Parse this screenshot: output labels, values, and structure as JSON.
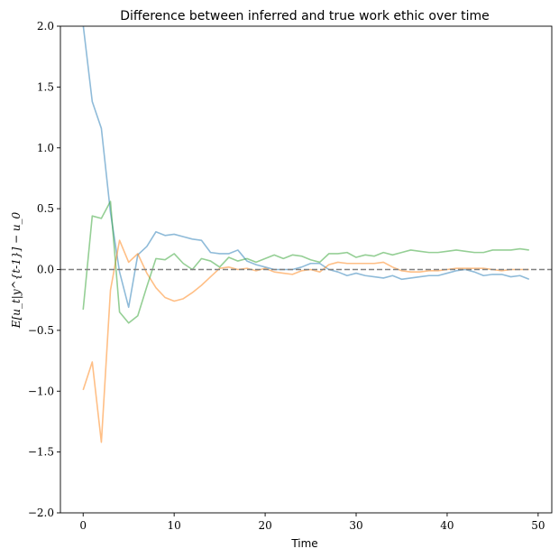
{
  "chart_data": {
    "type": "line",
    "title": "Difference between inferred and true work ethic over time",
    "xlabel": "Time",
    "ylabel": "E[u_t|y^{t-1}] − u_0",
    "xlim": [
      -2.5,
      51.5
    ],
    "ylim": [
      -2.0,
      2.0
    ],
    "xticks": [
      0,
      10,
      20,
      30,
      40,
      50
    ],
    "yticks": [
      -2.0,
      -1.5,
      -1.0,
      -0.5,
      0.0,
      0.5,
      1.0,
      1.5,
      2.0
    ],
    "xtick_labels": [
      "0",
      "10",
      "20",
      "30",
      "40",
      "50"
    ],
    "ytick_labels": [
      "−2.0",
      "−1.5",
      "−1.0",
      "−0.5",
      "0.0",
      "0.5",
      "1.0",
      "1.5",
      "2.0"
    ],
    "reference_line": {
      "y": 0.0,
      "style": "dashed",
      "color": "#808080"
    },
    "grid": false,
    "series": [
      {
        "color": "#1f77b4",
        "x": [
          0,
          1,
          2,
          3,
          4,
          5,
          6,
          7,
          8,
          9,
          10,
          11,
          12,
          13,
          14,
          15,
          16,
          17,
          18,
          19,
          20,
          21,
          22,
          23,
          24,
          25,
          26,
          27,
          28,
          29,
          30,
          31,
          32,
          33,
          34,
          35,
          36,
          37,
          38,
          39,
          40,
          41,
          42,
          43,
          44,
          45,
          46,
          47,
          48,
          49
        ],
        "values": [
          2.01,
          1.38,
          1.16,
          0.47,
          -0.02,
          -0.31,
          0.12,
          0.19,
          0.31,
          0.28,
          0.29,
          0.27,
          0.25,
          0.24,
          0.14,
          0.13,
          0.13,
          0.16,
          0.07,
          0.04,
          0.02,
          0.0,
          0.0,
          0.0,
          0.02,
          0.05,
          0.05,
          0.0,
          -0.02,
          -0.05,
          -0.03,
          -0.05,
          -0.06,
          -0.07,
          -0.05,
          -0.08,
          -0.07,
          -0.06,
          -0.05,
          -0.05,
          -0.03,
          -0.01,
          0.0,
          -0.02,
          -0.05,
          -0.04,
          -0.04,
          -0.06,
          -0.05,
          -0.08
        ]
      },
      {
        "color": "#ff7f0e",
        "x": [
          0,
          1,
          2,
          3,
          4,
          5,
          6,
          7,
          8,
          9,
          10,
          11,
          12,
          13,
          14,
          15,
          16,
          17,
          18,
          19,
          20,
          21,
          22,
          23,
          24,
          25,
          26,
          27,
          28,
          29,
          30,
          31,
          32,
          33,
          34,
          35,
          36,
          37,
          38,
          39,
          40,
          41,
          42,
          43,
          44,
          45,
          46,
          47,
          48,
          49
        ],
        "values": [
          -0.99,
          -0.76,
          -1.42,
          -0.17,
          0.24,
          0.06,
          0.13,
          -0.03,
          -0.15,
          -0.23,
          -0.26,
          -0.24,
          -0.19,
          -0.13,
          -0.06,
          0.01,
          0.02,
          0.0,
          0.01,
          -0.01,
          0.01,
          -0.02,
          -0.03,
          -0.04,
          -0.01,
          0.0,
          -0.02,
          0.04,
          0.06,
          0.05,
          0.05,
          0.05,
          0.05,
          0.06,
          0.02,
          -0.01,
          -0.02,
          -0.02,
          -0.01,
          -0.01,
          0.0,
          0.01,
          0.01,
          0.01,
          0.01,
          0.0,
          -0.01,
          0.0,
          0.0,
          0.0
        ]
      },
      {
        "color": "#2ca02c",
        "x": [
          0,
          1,
          2,
          3,
          4,
          5,
          6,
          7,
          8,
          9,
          10,
          11,
          12,
          13,
          14,
          15,
          16,
          17,
          18,
          19,
          20,
          21,
          22,
          23,
          24,
          25,
          26,
          27,
          28,
          29,
          30,
          31,
          32,
          33,
          34,
          35,
          36,
          37,
          38,
          39,
          40,
          41,
          42,
          43,
          44,
          45,
          46,
          47,
          48,
          49
        ],
        "values": [
          -0.33,
          0.44,
          0.42,
          0.56,
          -0.35,
          -0.44,
          -0.38,
          -0.14,
          0.09,
          0.08,
          0.13,
          0.05,
          0.0,
          0.09,
          0.07,
          0.02,
          0.1,
          0.07,
          0.09,
          0.06,
          0.09,
          0.12,
          0.09,
          0.12,
          0.11,
          0.08,
          0.06,
          0.13,
          0.13,
          0.14,
          0.1,
          0.12,
          0.11,
          0.14,
          0.12,
          0.14,
          0.16,
          0.15,
          0.14,
          0.14,
          0.15,
          0.16,
          0.15,
          0.14,
          0.14,
          0.16,
          0.16,
          0.16,
          0.17,
          0.16
        ]
      }
    ]
  }
}
